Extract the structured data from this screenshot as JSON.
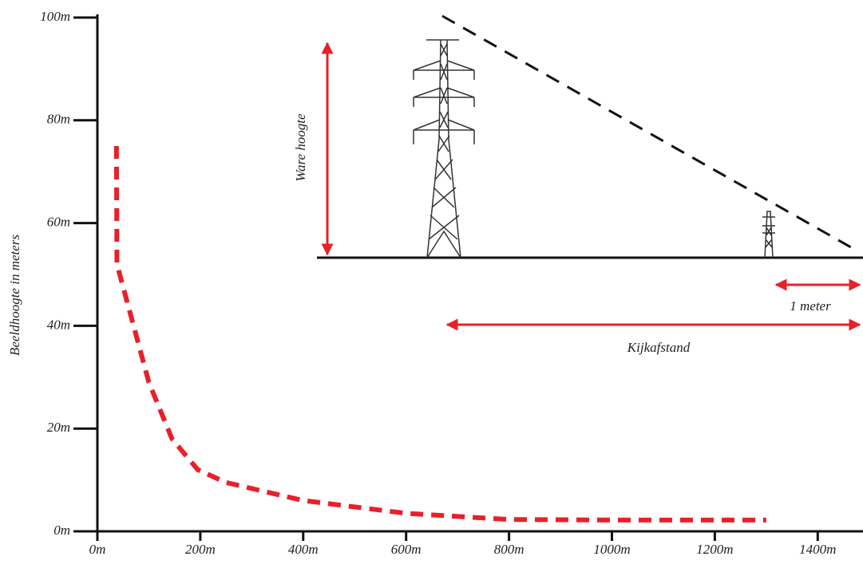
{
  "chart_data": {
    "type": "line",
    "ylabel": "Beeldhoogte in meters",
    "annotations": [
      "Ware hoogte",
      "1 meter",
      "Kijkafstand"
    ],
    "x": [
      37,
      38,
      100,
      145,
      195,
      250,
      400,
      600,
      800,
      1000,
      1300
    ],
    "series": [
      {
        "color": "#e8202a",
        "values": [
          75,
          52,
          29,
          18,
          12,
          9.5,
          6,
          3.5,
          2.3,
          2.2,
          2.2
        ]
      }
    ],
    "xlim": [
      0,
      1488
    ],
    "ylim": [
      0,
      100
    ],
    "xticks": [
      {
        "value": 0,
        "label": "0m"
      },
      {
        "value": 200,
        "label": "200m"
      },
      {
        "value": 400,
        "label": "400m"
      },
      {
        "value": 600,
        "label": "600m"
      },
      {
        "value": 800,
        "label": "800m"
      },
      {
        "value": 1000,
        "label": "1000m"
      },
      {
        "value": 1200,
        "label": "1200m"
      },
      {
        "value": 1400,
        "label": "1400m"
      }
    ],
    "yticks": [
      {
        "value": 0,
        "label": "0m"
      },
      {
        "value": 20,
        "label": "20m"
      },
      {
        "value": 40,
        "label": "40m"
      },
      {
        "value": 60,
        "label": "60m"
      },
      {
        "value": 80,
        "label": "80m"
      },
      {
        "value": 100,
        "label": "100m"
      }
    ]
  }
}
